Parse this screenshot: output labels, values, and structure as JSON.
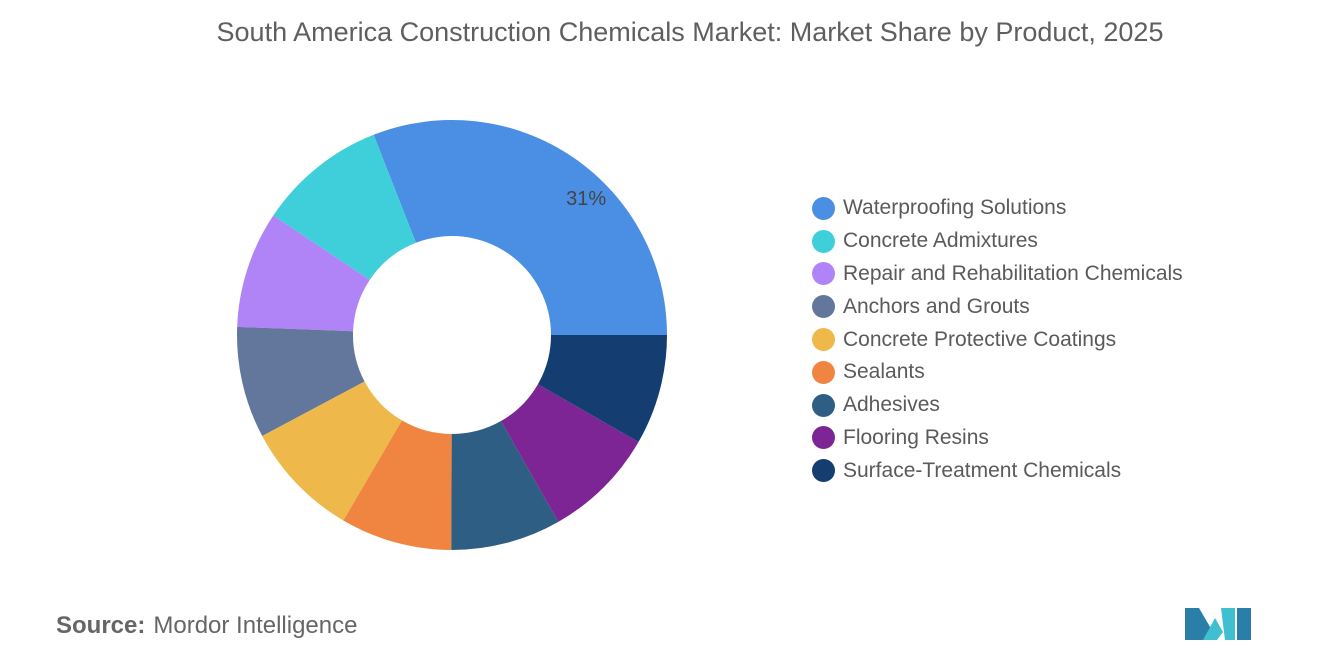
{
  "title": "South America Construction Chemicals Market: Market Share by Product, 2025",
  "source_label": "Source:",
  "source_value": "Mordor Intelligence",
  "chart_data": {
    "type": "pie",
    "donut": true,
    "title": "South America Construction Chemicals Market: Market Share by Product, 2025",
    "legend_position": "right",
    "categories": [
      "Waterproofing Solutions",
      "Concrete Admixtures",
      "Repair and Rehabilitation Chemicals",
      "Anchors and Grouts",
      "Concrete Protective Coatings",
      "Sealants",
      "Adhesives",
      "Flooring Resins",
      "Surface-Treatment Chemicals"
    ],
    "values": [
      31,
      9.7,
      8.8,
      8.4,
      8.8,
      8.4,
      8.3,
      8.5,
      8.3
    ],
    "colors": [
      "#4a8fe3",
      "#3fcfdb",
      "#b083f6",
      "#62779b",
      "#efb84b",
      "#f08541",
      "#2e5e84",
      "#7d2594",
      "#143e72"
    ],
    "data_labels": [
      "31%",
      "",
      "",
      "",
      "",
      "",
      "",
      "",
      ""
    ]
  }
}
